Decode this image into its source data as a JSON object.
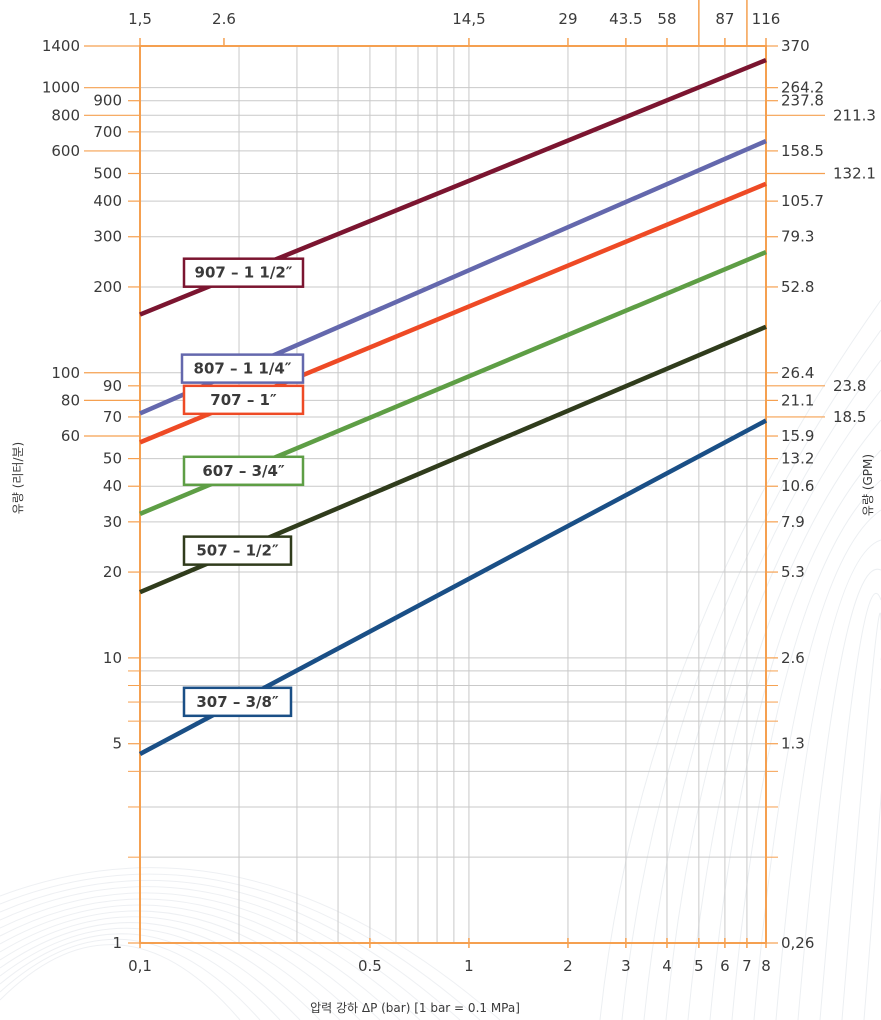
{
  "chart_data": {
    "type": "line",
    "scale": "log-log",
    "xlabel": "압력 강하 ΔP (bar) [1 bar = 0.1 MPa]",
    "ylabel_left": "유량 (리터/분)",
    "ylabel_right": "유량 (GPM)",
    "xlim": [
      0.1,
      8
    ],
    "ylim": [
      1,
      1400
    ],
    "grid": true,
    "axis_color": "#f5a050",
    "x_ticks": [
      {
        "v": 0.1,
        "label": "0,1"
      },
      {
        "v": 0.5,
        "label": "0.5"
      },
      {
        "v": 1,
        "label": "1"
      },
      {
        "v": 2,
        "label": "2"
      },
      {
        "v": 3,
        "label": "3"
      },
      {
        "v": 4,
        "label": "4"
      },
      {
        "v": 5,
        "label": "5"
      },
      {
        "v": 6,
        "label": "6"
      },
      {
        "v": 7,
        "label": "7"
      },
      {
        "v": 8,
        "label": "8"
      }
    ],
    "x_top_ticks": [
      {
        "v": 0.1,
        "label": "1,5"
      },
      {
        "v": 0.18,
        "label": "2.6"
      },
      {
        "v": 1.0,
        "label": "14,5"
      },
      {
        "v": 2.0,
        "label": "29"
      },
      {
        "v": 3.0,
        "label": "43.5"
      },
      {
        "v": 4.0,
        "label": "58"
      },
      {
        "v": 6.0,
        "label": "87"
      },
      {
        "v": 8.0,
        "label": "116"
      }
    ],
    "y_left_ticks": [
      {
        "v": 1400,
        "label": "1400",
        "tier": 0
      },
      {
        "v": 1000,
        "label": "1000",
        "tier": 0
      },
      {
        "v": 900,
        "label": "900",
        "tier": 1
      },
      {
        "v": 800,
        "label": "800",
        "tier": 0
      },
      {
        "v": 700,
        "label": "700",
        "tier": 1
      },
      {
        "v": 600,
        "label": "600",
        "tier": 0
      },
      {
        "v": 500,
        "label": "500",
        "tier": 1
      },
      {
        "v": 400,
        "label": "400",
        "tier": 1
      },
      {
        "v": 300,
        "label": "300",
        "tier": 1
      },
      {
        "v": 200,
        "label": "200",
        "tier": 1
      },
      {
        "v": 100,
        "label": "100",
        "tier": 0
      },
      {
        "v": 90,
        "label": "90",
        "tier": 1
      },
      {
        "v": 80,
        "label": "80",
        "tier": 0
      },
      {
        "v": 70,
        "label": "70",
        "tier": 1
      },
      {
        "v": 60,
        "label": "60",
        "tier": 0
      },
      {
        "v": 50,
        "label": "50",
        "tier": 1
      },
      {
        "v": 40,
        "label": "40",
        "tier": 1
      },
      {
        "v": 30,
        "label": "30",
        "tier": 1
      },
      {
        "v": 20,
        "label": "20",
        "tier": 1
      },
      {
        "v": 10,
        "label": "10",
        "tier": 1
      },
      {
        "v": 5,
        "label": "5",
        "tier": 1
      },
      {
        "v": 1,
        "label": "1",
        "tier": 1
      }
    ],
    "y_right_ticks": [
      {
        "v": 1400,
        "label": "370",
        "tier": 0
      },
      {
        "v": 1000,
        "label": "264.2",
        "tier": 0
      },
      {
        "v": 900,
        "label": "237.8",
        "tier": 0
      },
      {
        "v": 800,
        "label": "211.3",
        "tier": 1
      },
      {
        "v": 600,
        "label": "158.5",
        "tier": 0
      },
      {
        "v": 500,
        "label": "132.1",
        "tier": 1
      },
      {
        "v": 400,
        "label": "105.7",
        "tier": 0
      },
      {
        "v": 300,
        "label": "79.3",
        "tier": 0
      },
      {
        "v": 200,
        "label": "52.8",
        "tier": 0
      },
      {
        "v": 100,
        "label": "26.4",
        "tier": 0
      },
      {
        "v": 90,
        "label": "23.8",
        "tier": 1
      },
      {
        "v": 80,
        "label": "21.1",
        "tier": 0
      },
      {
        "v": 70,
        "label": "18.5",
        "tier": 1
      },
      {
        "v": 60,
        "label": "15.9",
        "tier": 0
      },
      {
        "v": 50,
        "label": "13.2",
        "tier": 0
      },
      {
        "v": 40,
        "label": "10.6",
        "tier": 0
      },
      {
        "v": 30,
        "label": "7.9",
        "tier": 0
      },
      {
        "v": 20,
        "label": "5.3",
        "tier": 0
      },
      {
        "v": 10,
        "label": "2.6",
        "tier": 0
      },
      {
        "v": 5,
        "label": "1.3",
        "tier": 0
      },
      {
        "v": 1,
        "label": "0,26",
        "tier": 0
      }
    ],
    "series": [
      {
        "name": "907 – 1 1/2″",
        "color": "#7b1530",
        "x": [
          0.1,
          8
        ],
        "y": [
          160,
          1250
        ]
      },
      {
        "name": "807 – 1 1/4″",
        "color": "#6468ad",
        "x": [
          0.1,
          8
        ],
        "y": [
          72,
          650
        ]
      },
      {
        "name": "707 – 1″",
        "color": "#ee4a25",
        "x": [
          0.1,
          8
        ],
        "y": [
          57,
          460
        ]
      },
      {
        "name": "607 – 3/4″",
        "color": "#5e9e45",
        "x": [
          0.1,
          8
        ],
        "y": [
          32,
          265
        ]
      },
      {
        "name": "507 – 1/2″",
        "color": "#303c1c",
        "x": [
          0.1,
          8
        ],
        "y": [
          17,
          145
        ]
      },
      {
        "name": "307 – 3/8″",
        "color": "#1a4f86",
        "x": [
          0.1,
          8
        ],
        "y": [
          4.6,
          68
        ]
      }
    ]
  }
}
